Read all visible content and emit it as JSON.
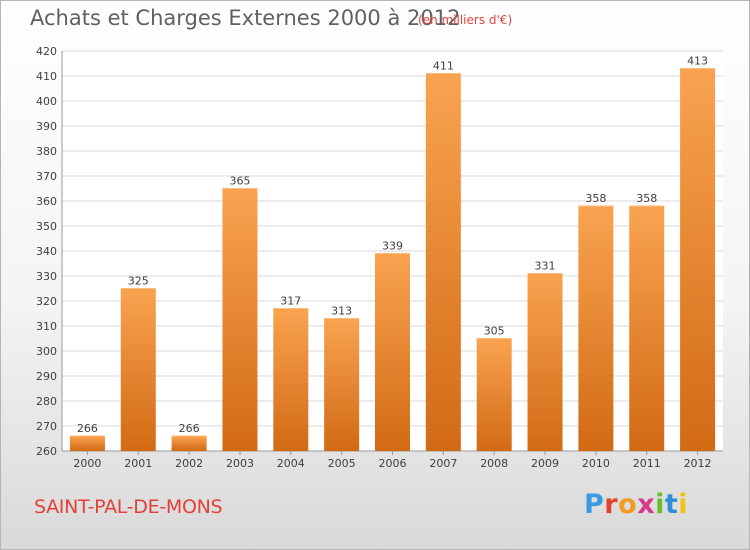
{
  "header": {
    "title": "Achats et Charges Externes 2000 à 2012",
    "subtitle": "(en milliers d'€)"
  },
  "footer": {
    "commune": "SAINT-PAL-DE-MONS",
    "logo": "Proxiti"
  },
  "colors": {
    "bar_top": "#f9a350",
    "bar_bottom": "#d26a14",
    "grid": "#d9d9d9",
    "axis_text": "#404040"
  },
  "chart_data": {
    "type": "bar",
    "categories": [
      "2000",
      "2001",
      "2002",
      "2003",
      "2004",
      "2005",
      "2006",
      "2007",
      "2008",
      "2009",
      "2010",
      "2011",
      "2012"
    ],
    "values": [
      266,
      325,
      266,
      365,
      317,
      313,
      339,
      411,
      305,
      331,
      358,
      358,
      413
    ],
    "ylim": [
      260,
      420
    ],
    "yticks": [
      260,
      270,
      280,
      290,
      300,
      310,
      320,
      330,
      340,
      350,
      360,
      370,
      380,
      390,
      400,
      410,
      420
    ],
    "grid": true,
    "title": "Achats et Charges Externes 2000 à 2012",
    "subtitle": "(en milliers d'€)"
  }
}
